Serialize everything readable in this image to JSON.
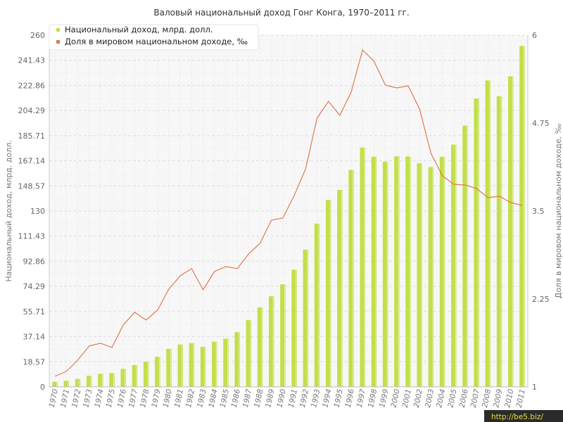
{
  "chart_data": {
    "type": "bar+line",
    "title": "Валовый национальный доход Гонг Конга, 1970–2011 гг.",
    "ylabel_left": "Национальный доход, млрд. долл.",
    "ylabel_right": "Доля в мировом национальном доходе, ‰",
    "yticks_left": [
      "0",
      "18.57",
      "37.14",
      "55.71",
      "74.29",
      "92.86",
      "111.43",
      "130",
      "148.57",
      "167.14",
      "185.71",
      "204.29",
      "222.86",
      "241.43",
      "260"
    ],
    "yticks_right": [
      "1",
      "2.25",
      "3.5",
      "4.75",
      "6"
    ],
    "ylim_left": [
      0,
      260
    ],
    "ylim_right": [
      1,
      6
    ],
    "categories": [
      "1970",
      "1971",
      "1972",
      "1973",
      "1974",
      "1975",
      "1976",
      "1977",
      "1978",
      "1979",
      "1980",
      "1981",
      "1982",
      "1983",
      "1984",
      "1985",
      "1986",
      "1987",
      "1988",
      "1989",
      "1990",
      "1991",
      "1992",
      "1993",
      "1994",
      "1995",
      "1996",
      "1997",
      "1998",
      "1999",
      "2000",
      "2001",
      "2002",
      "2003",
      "2004",
      "2005",
      "2006",
      "2007",
      "2008",
      "2009",
      "2010",
      "2011"
    ],
    "series": [
      {
        "name": "Национальный доход, млрд. долл.",
        "type": "bar",
        "axis": "left",
        "color": "#c2df4a",
        "values": [
          3.8,
          4.5,
          5.8,
          8.2,
          9.6,
          10.2,
          13.3,
          16.1,
          18.6,
          22.3,
          28.1,
          31.3,
          32.4,
          29.6,
          33.4,
          35.6,
          40.4,
          49.3,
          58.7,
          67.0,
          75.8,
          86.6,
          101.4,
          120.6,
          138.2,
          145.6,
          160.4,
          176.9,
          170.2,
          166.5,
          170.4,
          170.4,
          165.3,
          162.5,
          170.1,
          179.1,
          193.1,
          213.1,
          226.5,
          214.9,
          229.6,
          252.0
        ]
      },
      {
        "name": "Доля в мировом национальном доходе, ‰",
        "type": "line",
        "axis": "right",
        "color": "#e07a50",
        "values": [
          1.15,
          1.22,
          1.38,
          1.58,
          1.62,
          1.56,
          1.88,
          2.06,
          1.95,
          2.09,
          2.39,
          2.58,
          2.68,
          2.38,
          2.64,
          2.71,
          2.68,
          2.89,
          3.04,
          3.37,
          3.4,
          3.72,
          4.1,
          4.82,
          5.06,
          4.86,
          5.19,
          5.79,
          5.63,
          5.29,
          5.25,
          5.28,
          4.95,
          4.32,
          4.0,
          3.88,
          3.87,
          3.82,
          3.69,
          3.71,
          3.62,
          3.58
        ]
      }
    ],
    "legend_position": "top-left",
    "grid": true
  },
  "watermark": "http://be5.biz/"
}
